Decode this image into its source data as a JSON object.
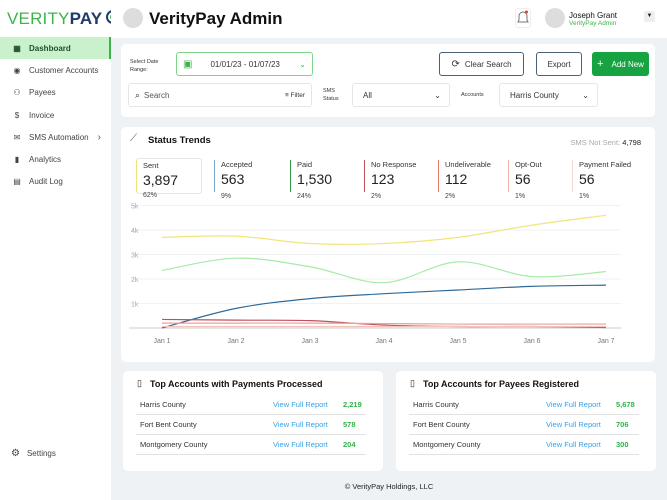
{
  "brand": {
    "logo_a": "VERITY",
    "logo_b": "PAY",
    "accent": "#3cb44a"
  },
  "sidebar": {
    "items": [
      {
        "label": "Dashboard",
        "icon": "layout-icon",
        "active": true
      },
      {
        "label": "Customer Accounts",
        "icon": "user-circle-icon"
      },
      {
        "label": "Payees",
        "icon": "users-icon"
      },
      {
        "label": "Invoice",
        "icon": "dollar-icon"
      },
      {
        "label": "SMS Automation",
        "icon": "mail-icon",
        "chevron": true
      },
      {
        "label": "Analytics",
        "icon": "bar-chart-icon"
      },
      {
        "label": "Audit Log",
        "icon": "clipboard-icon"
      }
    ],
    "settings": "Settings"
  },
  "header": {
    "title": "VerityPay Admin",
    "user_name": "Joseph Grant",
    "user_role": "VerityPay Admin"
  },
  "filters": {
    "date_label": "Select Date Range:",
    "date_value": "01/01/23 - 01/07/23",
    "clear": "Clear Search",
    "export": "Export",
    "add": "Add New",
    "search_placeholder": "Search",
    "filter": "Filter",
    "sms_label": "SMS Status",
    "sms_value": "All",
    "accounts_label": "Accounts",
    "accounts_value": "Harris County"
  },
  "trends": {
    "title": "Status Trends",
    "not_sent_label": "SMS Not Sent:",
    "not_sent_value": "4,798",
    "stats": [
      {
        "name": "Sent",
        "value": "3,897",
        "pct": "62%",
        "color": "#f0e27a"
      },
      {
        "name": "Accepted",
        "value": "563",
        "pct": "9%",
        "color": "#7fa8c9"
      },
      {
        "name": "Paid",
        "value": "1,530",
        "pct": "24%",
        "color": "#2a9a45"
      },
      {
        "name": "No Response",
        "value": "123",
        "pct": "2%",
        "color": "#c0505a"
      },
      {
        "name": "Undeliverable",
        "value": "112",
        "pct": "2%",
        "color": "#e07a6a"
      },
      {
        "name": "Opt-Out",
        "value": "56",
        "pct": "1%",
        "color": "#f1b3a8"
      },
      {
        "name": "Payment Failed",
        "value": "56",
        "pct": "1%",
        "color": "#f6d6d0"
      }
    ]
  },
  "chart_data": {
    "type": "line",
    "categories": [
      "Jan 1",
      "Jan 2",
      "Jan 3",
      "Jan 4",
      "Jan 5",
      "Jan 6",
      "Jan 7"
    ],
    "yticks": [
      "1k",
      "2k",
      "3k",
      "4k",
      "5k"
    ],
    "ylim": [
      0,
      5000
    ],
    "grid": true,
    "series": [
      {
        "name": "Sent",
        "color": "#f2e47a",
        "values": [
          3700,
          3750,
          3450,
          3450,
          3700,
          4200,
          4600
        ]
      },
      {
        "name": "Paid",
        "color": "#a8eaa8",
        "values": [
          2350,
          2850,
          2500,
          1850,
          2700,
          2100,
          2300
        ]
      },
      {
        "name": "Accepted",
        "color": "#2f6b9a",
        "values": [
          0,
          800,
          1200,
          1400,
          1550,
          1700,
          1750
        ]
      },
      {
        "name": "No Response",
        "color": "#c0505a",
        "values": [
          350,
          320,
          300,
          120,
          60,
          60,
          20
        ]
      },
      {
        "name": "Undeliverable",
        "color": "#e8a0a0",
        "values": [
          200,
          200,
          200,
          180,
          160,
          160,
          160
        ]
      },
      {
        "name": "Opt-Out",
        "color": "#f3c2bb",
        "values": [
          60,
          60,
          60,
          60,
          60,
          60,
          60
        ]
      }
    ]
  },
  "payments": {
    "title": "Top Accounts with Payments Processed",
    "rows": [
      {
        "name": "Harris County",
        "link": "View Full Report",
        "value": "2,219"
      },
      {
        "name": "Fort Bent County",
        "link": "View Full Report",
        "value": "578"
      },
      {
        "name": "Montgomery County",
        "link": "View Full Report",
        "value": "204"
      }
    ]
  },
  "payees": {
    "title": "Top Accounts for Payees Registered",
    "rows": [
      {
        "name": "Harris County",
        "link": "View Full Report",
        "value": "5,678"
      },
      {
        "name": "Fort Bent County",
        "link": "View Full Report",
        "value": "706"
      },
      {
        "name": "Montgomery County",
        "link": "View Full Report",
        "value": "300"
      }
    ]
  },
  "footer": "© VerityPay Holdings, LLC"
}
